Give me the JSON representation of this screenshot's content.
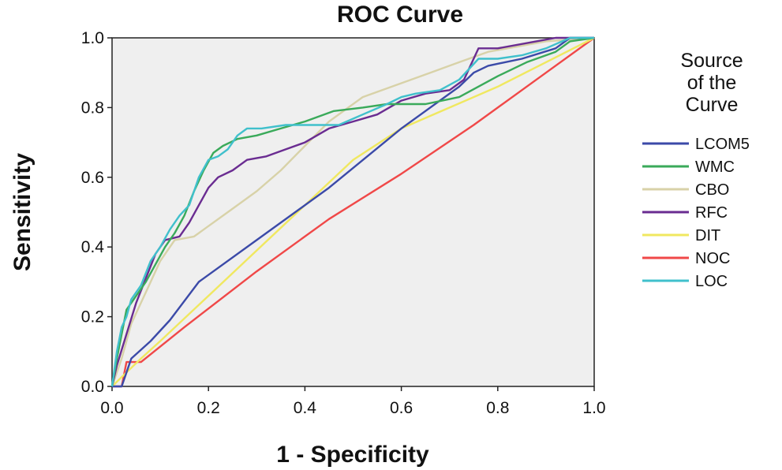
{
  "chart_data": {
    "type": "line",
    "title": "ROC Curve",
    "xlabel": "1 - Specificity",
    "ylabel": "Sensitivity",
    "xlim": [
      0,
      1
    ],
    "ylim": [
      0,
      1
    ],
    "xticks": [
      "0.0",
      "0.2",
      "0.4",
      "0.6",
      "0.8",
      "1.0"
    ],
    "yticks": [
      "0.0",
      "0.2",
      "0.4",
      "0.6",
      "0.8",
      "1.0"
    ],
    "legend_title": [
      "Source",
      "of the",
      "Curve"
    ],
    "legend_position": "right",
    "background": "#efefef",
    "series": [
      {
        "name": "LCOM5",
        "color": "#3b4aa8",
        "points": [
          [
            0,
            0
          ],
          [
            0.02,
            0
          ],
          [
            0.04,
            0.08
          ],
          [
            0.08,
            0.13
          ],
          [
            0.12,
            0.19
          ],
          [
            0.18,
            0.3
          ],
          [
            0.3,
            0.42
          ],
          [
            0.45,
            0.57
          ],
          [
            0.6,
            0.74
          ],
          [
            0.72,
            0.86
          ],
          [
            0.75,
            0.9
          ],
          [
            0.78,
            0.92
          ],
          [
            0.85,
            0.94
          ],
          [
            0.92,
            0.97
          ],
          [
            0.95,
            1.0
          ],
          [
            1,
            1
          ]
        ]
      },
      {
        "name": "WMC",
        "color": "#3aaa5a",
        "points": [
          [
            0,
            0
          ],
          [
            0.01,
            0.08
          ],
          [
            0.02,
            0.15
          ],
          [
            0.03,
            0.22
          ],
          [
            0.05,
            0.26
          ],
          [
            0.07,
            0.3
          ],
          [
            0.09,
            0.35
          ],
          [
            0.11,
            0.4
          ],
          [
            0.13,
            0.44
          ],
          [
            0.15,
            0.49
          ],
          [
            0.17,
            0.56
          ],
          [
            0.19,
            0.62
          ],
          [
            0.21,
            0.67
          ],
          [
            0.23,
            0.69
          ],
          [
            0.26,
            0.71
          ],
          [
            0.3,
            0.72
          ],
          [
            0.35,
            0.74
          ],
          [
            0.4,
            0.76
          ],
          [
            0.46,
            0.79
          ],
          [
            0.52,
            0.8
          ],
          [
            0.57,
            0.81
          ],
          [
            0.61,
            0.81
          ],
          [
            0.65,
            0.81
          ],
          [
            0.72,
            0.83
          ],
          [
            0.8,
            0.89
          ],
          [
            0.86,
            0.93
          ],
          [
            0.92,
            0.96
          ],
          [
            0.95,
            0.99
          ],
          [
            1,
            1
          ]
        ]
      },
      {
        "name": "CBO",
        "color": "#d8d2a8",
        "points": [
          [
            0,
            0
          ],
          [
            0.02,
            0.08
          ],
          [
            0.04,
            0.18
          ],
          [
            0.07,
            0.27
          ],
          [
            0.1,
            0.36
          ],
          [
            0.13,
            0.42
          ],
          [
            0.17,
            0.43
          ],
          [
            0.2,
            0.46
          ],
          [
            0.25,
            0.51
          ],
          [
            0.3,
            0.56
          ],
          [
            0.35,
            0.62
          ],
          [
            0.4,
            0.69
          ],
          [
            0.45,
            0.76
          ],
          [
            0.52,
            0.83
          ],
          [
            0.6,
            0.87
          ],
          [
            0.66,
            0.9
          ],
          [
            0.72,
            0.93
          ],
          [
            0.78,
            0.96
          ],
          [
            0.82,
            0.97
          ],
          [
            0.9,
            0.99
          ],
          [
            1,
            1
          ]
        ]
      },
      {
        "name": "RFC",
        "color": "#6a2c91",
        "points": [
          [
            0,
            0
          ],
          [
            0.01,
            0.06
          ],
          [
            0.03,
            0.15
          ],
          [
            0.05,
            0.24
          ],
          [
            0.07,
            0.31
          ],
          [
            0.09,
            0.38
          ],
          [
            0.11,
            0.42
          ],
          [
            0.14,
            0.43
          ],
          [
            0.16,
            0.47
          ],
          [
            0.18,
            0.52
          ],
          [
            0.2,
            0.57
          ],
          [
            0.22,
            0.6
          ],
          [
            0.25,
            0.62
          ],
          [
            0.28,
            0.65
          ],
          [
            0.32,
            0.66
          ],
          [
            0.36,
            0.68
          ],
          [
            0.4,
            0.7
          ],
          [
            0.45,
            0.74
          ],
          [
            0.5,
            0.76
          ],
          [
            0.55,
            0.78
          ],
          [
            0.6,
            0.82
          ],
          [
            0.65,
            0.84
          ],
          [
            0.7,
            0.85
          ],
          [
            0.73,
            0.88
          ],
          [
            0.76,
            0.97
          ],
          [
            0.8,
            0.97
          ],
          [
            0.88,
            0.99
          ],
          [
            0.92,
            1.0
          ],
          [
            1,
            1
          ]
        ]
      },
      {
        "name": "DIT",
        "color": "#f0e860",
        "points": [
          [
            0,
            0
          ],
          [
            0.03,
            0.04
          ],
          [
            0.06,
            0.08
          ],
          [
            0.1,
            0.13
          ],
          [
            0.2,
            0.26
          ],
          [
            0.3,
            0.39
          ],
          [
            0.4,
            0.52
          ],
          [
            0.5,
            0.65
          ],
          [
            0.6,
            0.74
          ],
          [
            0.7,
            0.8
          ],
          [
            0.8,
            0.86
          ],
          [
            0.9,
            0.93
          ],
          [
            1,
            1
          ]
        ]
      },
      {
        "name": "NOC",
        "color": "#f04848",
        "points": [
          [
            0,
            0
          ],
          [
            0.02,
            0
          ],
          [
            0.03,
            0.07
          ],
          [
            0.06,
            0.07
          ],
          [
            0.15,
            0.17
          ],
          [
            0.3,
            0.33
          ],
          [
            0.45,
            0.48
          ],
          [
            0.6,
            0.61
          ],
          [
            0.75,
            0.75
          ],
          [
            0.9,
            0.9
          ],
          [
            1,
            1
          ]
        ]
      },
      {
        "name": "LOC",
        "color": "#40c0cc",
        "points": [
          [
            0,
            0
          ],
          [
            0.01,
            0.1
          ],
          [
            0.02,
            0.17
          ],
          [
            0.03,
            0.2
          ],
          [
            0.04,
            0.25
          ],
          [
            0.06,
            0.29
          ],
          [
            0.08,
            0.36
          ],
          [
            0.1,
            0.4
          ],
          [
            0.12,
            0.45
          ],
          [
            0.14,
            0.49
          ],
          [
            0.16,
            0.52
          ],
          [
            0.18,
            0.6
          ],
          [
            0.2,
            0.65
          ],
          [
            0.22,
            0.66
          ],
          [
            0.24,
            0.68
          ],
          [
            0.26,
            0.72
          ],
          [
            0.28,
            0.74
          ],
          [
            0.31,
            0.74
          ],
          [
            0.36,
            0.75
          ],
          [
            0.42,
            0.75
          ],
          [
            0.47,
            0.75
          ],
          [
            0.52,
            0.78
          ],
          [
            0.57,
            0.81
          ],
          [
            0.6,
            0.83
          ],
          [
            0.63,
            0.84
          ],
          [
            0.68,
            0.85
          ],
          [
            0.72,
            0.88
          ],
          [
            0.76,
            0.94
          ],
          [
            0.8,
            0.94
          ],
          [
            0.85,
            0.95
          ],
          [
            0.9,
            0.97
          ],
          [
            0.95,
            1.0
          ],
          [
            1,
            1
          ]
        ]
      }
    ]
  }
}
